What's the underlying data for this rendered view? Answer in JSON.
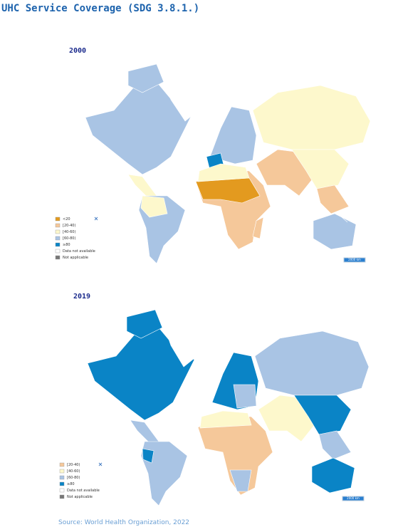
{
  "title": "UHC Service Coverage (SDG 3.8.1.)",
  "maps": [
    {
      "year": "2000",
      "scale": "2000 km",
      "legend": [
        {
          "label": "<20",
          "color": "#e39a1f"
        },
        {
          "label": "[20-40)",
          "color": "#f5c89a"
        },
        {
          "label": "[40-60)",
          "color": "#fdf8cc"
        },
        {
          "label": "[60-80)",
          "color": "#a9c4e4"
        },
        {
          "label": "≥80",
          "color": "#0a84c6"
        },
        {
          "label": "Data not available",
          "color": "#ffffff"
        },
        {
          "label": "Not applicable",
          "color": "#777777"
        }
      ]
    },
    {
      "year": "2019",
      "scale": "2000 km",
      "legend": [
        {
          "label": "[20-40)",
          "color": "#f5c89a"
        },
        {
          "label": "[40-60)",
          "color": "#fdf8cc"
        },
        {
          "label": "[60-80)",
          "color": "#a9c4e4"
        },
        {
          "label": "≥80",
          "color": "#0a84c6"
        },
        {
          "label": "Data not available",
          "color": "#ffffff"
        },
        {
          "label": "Not applicable",
          "color": "#777777"
        }
      ]
    }
  ],
  "source": "Source: World Health Organization, 2022"
}
